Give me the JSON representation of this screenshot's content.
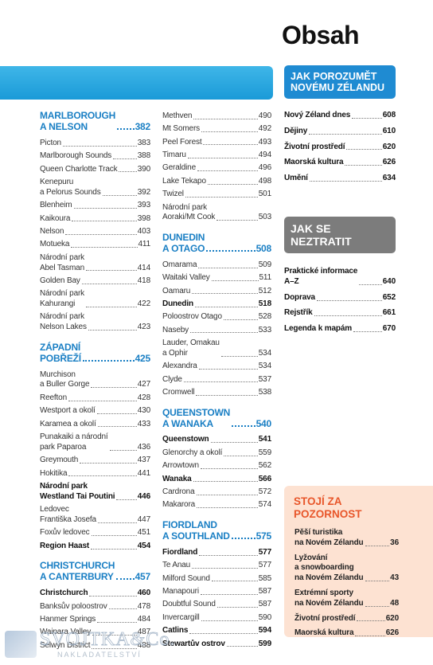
{
  "title": "Obsah",
  "columns": [
    {
      "blocks": [
        {
          "heading": "MARLBOROUGH\nA NELSON",
          "page": 382,
          "entries": [
            {
              "label": "Picton",
              "page": 383
            },
            {
              "label": "Marlborough Sounds",
              "page": 388
            },
            {
              "label": "Queen Charlotte Track",
              "page": 390
            },
            {
              "label": "Kenepuru\na Pelorus Sounds",
              "page": 392
            },
            {
              "label": "Blenheim",
              "page": 393
            },
            {
              "label": "Kaikoura",
              "page": 398
            },
            {
              "label": "Nelson",
              "page": 403
            },
            {
              "label": "Motueka",
              "page": 411
            },
            {
              "label": "Národní park\nAbel Tasman",
              "page": 414
            },
            {
              "label": "Golden Bay",
              "page": 418
            },
            {
              "label": "Národní park\nKahurangi",
              "page": 422
            },
            {
              "label": "Národní park\nNelson Lakes",
              "page": 423
            }
          ]
        },
        {
          "heading": "ZÁPADNÍ\nPOBŘEŽÍ",
          "page": 425,
          "entries": [
            {
              "label": "Murchison\na Buller Gorge",
              "page": 427
            },
            {
              "label": "Reefton",
              "page": 428
            },
            {
              "label": "Westport a okolí",
              "page": 430
            },
            {
              "label": "Karamea a okolí",
              "page": 433
            },
            {
              "label": "Punakaiki a národní\npark Paparoa",
              "page": 436
            },
            {
              "label": "Greymouth",
              "page": 437
            },
            {
              "label": "Hokitika",
              "page": 441
            },
            {
              "label": "Národní park\nWestland Tai Poutini",
              "page": 446,
              "bold": true
            },
            {
              "label": "Ledovec\nFrantiška Josefa",
              "page": 447
            },
            {
              "label": "Foxův ledovec",
              "page": 451
            },
            {
              "label": "Region Haast",
              "page": 454,
              "bold": true
            }
          ]
        },
        {
          "heading": "CHRISTCHURCH\nA CANTERBURY",
          "page": 457,
          "entries": [
            {
              "label": "Christchurch",
              "page": 460,
              "bold": true
            },
            {
              "label": "Banksův poloostrov",
              "page": 478
            },
            {
              "label": "Hanmer Springs",
              "page": 484
            },
            {
              "label": "Waipara Valley",
              "page": 487
            },
            {
              "label": "Selwyn District",
              "page": 488
            }
          ]
        }
      ]
    },
    {
      "blocks": [
        {
          "entries": [
            {
              "label": "Methven",
              "page": 490
            },
            {
              "label": "Mt Somers",
              "page": 492
            },
            {
              "label": "Peel Forest",
              "page": 493
            },
            {
              "label": "Timaru",
              "page": 494
            },
            {
              "label": "Geraldine",
              "page": 496
            },
            {
              "label": "Lake Tekapo",
              "page": 498
            },
            {
              "label": "Twizel",
              "page": 501
            },
            {
              "label": "Národní park\nAoraki/Mt Cook",
              "page": 503
            }
          ]
        },
        {
          "heading": "DUNEDIN\nA OTAGO",
          "page": 508,
          "entries": [
            {
              "label": "Omarama",
              "page": 509
            },
            {
              "label": "Waitaki Valley",
              "page": 511
            },
            {
              "label": "Oamaru",
              "page": 512
            },
            {
              "label": "Dunedin",
              "page": 518,
              "bold": true
            },
            {
              "label": "Poloostrov Otago",
              "page": 528
            },
            {
              "label": "Naseby",
              "page": 533
            },
            {
              "label": "Lauder, Omakau\na Ophir",
              "page": 534
            },
            {
              "label": "Alexandra",
              "page": 534
            },
            {
              "label": "Clyde",
              "page": 537
            },
            {
              "label": "Cromwell",
              "page": 538
            }
          ]
        },
        {
          "heading": "QUEENSTOWN\nA WANAKA",
          "page": 540,
          "entries": [
            {
              "label": "Queenstown",
              "page": 541,
              "bold": true
            },
            {
              "label": "Glenorchy a okolí",
              "page": 559
            },
            {
              "label": "Arrowtown",
              "page": 562
            },
            {
              "label": "Wanaka",
              "page": 566,
              "bold": true
            },
            {
              "label": "Cardrona",
              "page": 572
            },
            {
              "label": "Makarora",
              "page": 574
            }
          ]
        },
        {
          "heading": "FIORDLAND\nA SOUTHLAND",
          "page": 575,
          "entries": [
            {
              "label": "Fiordland",
              "page": 577,
              "bold": true
            },
            {
              "label": "Te Anau",
              "page": 577
            },
            {
              "label": "Milford Sound",
              "page": 585
            },
            {
              "label": "Manapouri",
              "page": 587
            },
            {
              "label": "Doubtful Sound",
              "page": 587
            },
            {
              "label": "Invercargill",
              "page": 590
            },
            {
              "label": "Catlins",
              "page": 594,
              "bold": true
            },
            {
              "label": "Stewartův ostrov",
              "page": 599,
              "bold": true
            }
          ]
        }
      ]
    }
  ],
  "sidebar": [
    {
      "title": "JAK POROZUMĚT\nNOVÉMU ZÉLANDU",
      "entries": [
        {
          "label": "Nový Zéland dnes",
          "page": 608
        },
        {
          "label": "Dějiny",
          "page": 610
        },
        {
          "label": "Životní prostředí",
          "page": 620
        },
        {
          "label": "Maorská kultura",
          "page": 626
        },
        {
          "label": "Umění",
          "page": 634
        }
      ]
    },
    {
      "title": "JAK SE\nNEZTRATIT",
      "entries": [
        {
          "label": "Praktické informace\nA–Z",
          "page": 640
        },
        {
          "label": "Doprava",
          "page": 652
        },
        {
          "label": "Rejstřík",
          "page": 661
        },
        {
          "label": "Legenda k mapám",
          "page": 670
        }
      ]
    },
    {
      "title": "STOJÍ ZA\nPOZORNOST",
      "entries": [
        {
          "label": "Pěší turistika\nna Novém Zélandu",
          "page": 36
        },
        {
          "label": "Lyžování\na snowboarding\nna Novém Zélandu",
          "page": 43
        },
        {
          "label": "Extrémní sporty\nna Novém Zélandu",
          "page": 48
        },
        {
          "label": "Životní prostředí",
          "page": 620
        },
        {
          "label": "Maorská kultura",
          "page": 626
        }
      ]
    }
  ],
  "logo": {
    "name": "SVOJTKA&Co.",
    "subtitle": "NAKLADATELSTVÍ"
  }
}
